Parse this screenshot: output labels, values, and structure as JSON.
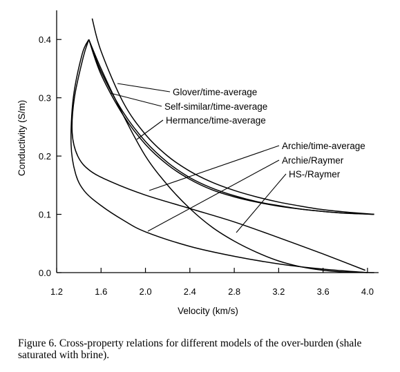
{
  "chart_data": {
    "type": "line",
    "xlabel": "Velocity (km/s)",
    "ylabel": "Conductivity (S/m)",
    "xlim": [
      1.2,
      4.1
    ],
    "ylim": [
      0.0,
      0.45
    ],
    "xticks": [
      "1.2",
      "1.6",
      "2.0",
      "2.4",
      "2.8",
      "3.2",
      "3.6",
      "4.0"
    ],
    "yticks": [
      "0.0",
      "0.1",
      "0.2",
      "0.3",
      "0.4"
    ],
    "grid": false,
    "series": [
      {
        "name": "Glover/time-average",
        "x": [
          1.52,
          1.6,
          1.8,
          2.0,
          2.2,
          2.4,
          2.6,
          2.8,
          3.0,
          3.2,
          3.4,
          3.6,
          3.8,
          4.06
        ],
        "y": [
          0.436,
          0.38,
          0.292,
          0.237,
          0.2,
          0.174,
          0.155,
          0.141,
          0.13,
          0.121,
          0.114,
          0.108,
          0.104,
          0.1
        ]
      },
      {
        "name": "Self-similar/time-average",
        "x": [
          1.49,
          1.6,
          1.8,
          2.0,
          2.2,
          2.4,
          2.6,
          2.8,
          3.0,
          3.2,
          3.4,
          3.6,
          3.8,
          4.06
        ],
        "y": [
          0.4,
          0.345,
          0.275,
          0.225,
          0.189,
          0.163,
          0.145,
          0.132,
          0.122,
          0.115,
          0.109,
          0.105,
          0.102,
          0.1
        ]
      },
      {
        "name": "Hermance/time-average",
        "x": [
          1.49,
          1.6,
          1.8,
          2.0,
          2.2,
          2.4,
          2.6,
          2.8,
          3.0,
          3.2,
          3.4,
          3.6,
          3.8,
          4.06
        ],
        "y": [
          0.4,
          0.34,
          0.27,
          0.22,
          0.185,
          0.16,
          0.142,
          0.13,
          0.121,
          0.114,
          0.109,
          0.105,
          0.102,
          0.1
        ]
      },
      {
        "name": "Archie/time-average",
        "x": [
          1.49,
          1.6,
          1.8,
          2.0,
          2.2,
          2.4,
          2.6,
          2.8,
          3.0,
          3.2,
          3.4,
          3.6,
          3.8,
          4.06
        ],
        "y": [
          0.4,
          0.35,
          0.27,
          0.2,
          0.15,
          0.11,
          0.078,
          0.054,
          0.035,
          0.02,
          0.01,
          0.004,
          0.001,
          0.0
        ]
      },
      {
        "name": "Archie/Raymer",
        "x": [
          1.49,
          1.43,
          1.35,
          1.33,
          1.37,
          1.45,
          1.6,
          1.8,
          2.0,
          2.4,
          2.8,
          3.2,
          3.6,
          4.0
        ],
        "y": [
          0.4,
          0.375,
          0.3,
          0.22,
          0.17,
          0.14,
          0.115,
          0.09,
          0.07,
          0.045,
          0.028,
          0.015,
          0.006,
          0.0
        ]
      },
      {
        "name": "HS-/Raymer",
        "x": [
          1.49,
          1.44,
          1.36,
          1.34,
          1.39,
          1.5,
          1.7,
          2.0,
          2.4,
          2.8,
          3.2,
          3.6,
          3.98
        ],
        "y": [
          0.4,
          0.37,
          0.3,
          0.24,
          0.2,
          0.175,
          0.155,
          0.133,
          0.11,
          0.087,
          0.06,
          0.032,
          0.004
        ]
      }
    ],
    "annotations": [
      "Glover/time-average",
      "Self-similar/time-average",
      "Hermance/time-average",
      "Archie/time-average",
      "Archie/Raymer",
      "HS-/Raymer"
    ]
  },
  "caption": "Figure 6. Cross-property relations for different models of the over-burden (shale saturated with brine)."
}
